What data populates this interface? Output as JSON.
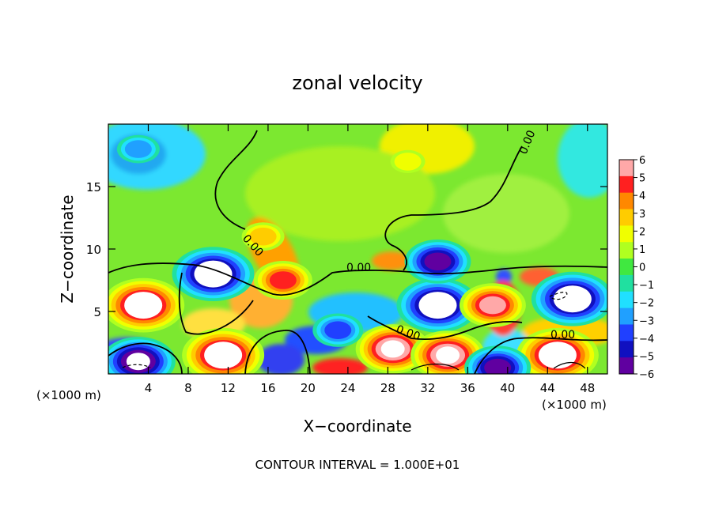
{
  "chart_data": {
    "type": "heatmap",
    "title": "zonal velocity",
    "xlabel": "X−coordinate",
    "ylabel": "Z−coordinate",
    "x_unit_left": "(×1000 m)",
    "x_unit_right": "(×1000 m)",
    "xlim": [
      0,
      50
    ],
    "ylim": [
      0,
      20
    ],
    "x_ticks": [
      4,
      8,
      12,
      16,
      20,
      24,
      28,
      32,
      36,
      40,
      44,
      48
    ],
    "y_ticks": [
      5,
      10,
      15
    ],
    "colorbar": {
      "range": [
        -6,
        6
      ],
      "ticks": [
        "6",
        "5",
        "4",
        "3",
        "2",
        "1",
        "0",
        "−1",
        "−2",
        "−3",
        "−4",
        "−5",
        "−6"
      ],
      "colors": [
        "#ffa8a8",
        "#ff2020",
        "#ff8800",
        "#ffcc00",
        "#f0ff00",
        "#b0ff20",
        "#40e840",
        "#20e0a0",
        "#20e0ff",
        "#20a0ff",
        "#2040ff",
        "#1010c0",
        "#6000a0"
      ]
    },
    "contour_labels": [
      "0.00",
      "0.00",
      "0.00",
      "0.00",
      "0.00"
    ],
    "footer": "CONTOUR INTERVAL = 1.000E+01",
    "features": [
      {
        "x": 3.5,
        "z": 5.5,
        "value": 8
      },
      {
        "x": 10.5,
        "z": 8.0,
        "value": -8
      },
      {
        "x": 17.5,
        "z": 7.5,
        "value": 5
      },
      {
        "x": 15.5,
        "z": 11.0,
        "value": 3
      },
      {
        "x": 33.0,
        "z": 5.5,
        "value": -8
      },
      {
        "x": 46.5,
        "z": 6.0,
        "value": -8
      },
      {
        "x": 28.5,
        "z": 2.0,
        "value": 7
      },
      {
        "x": 11.5,
        "z": 1.5,
        "value": 8
      },
      {
        "x": 3.0,
        "z": 1.0,
        "value": -7
      },
      {
        "x": 45.0,
        "z": 1.5,
        "value": 8
      },
      {
        "x": 38.5,
        "z": 5.5,
        "value": 6
      },
      {
        "x": 33.0,
        "z": 9.0,
        "value": -6
      },
      {
        "x": 23.0,
        "z": 3.5,
        "value": -4
      },
      {
        "x": 34.0,
        "z": 1.5,
        "value": 7
      },
      {
        "x": 39.0,
        "z": 0.5,
        "value": -6
      },
      {
        "x": 3.0,
        "z": 18.0,
        "value": -3
      },
      {
        "x": 30.0,
        "z": 17.0,
        "value": 2
      }
    ]
  }
}
